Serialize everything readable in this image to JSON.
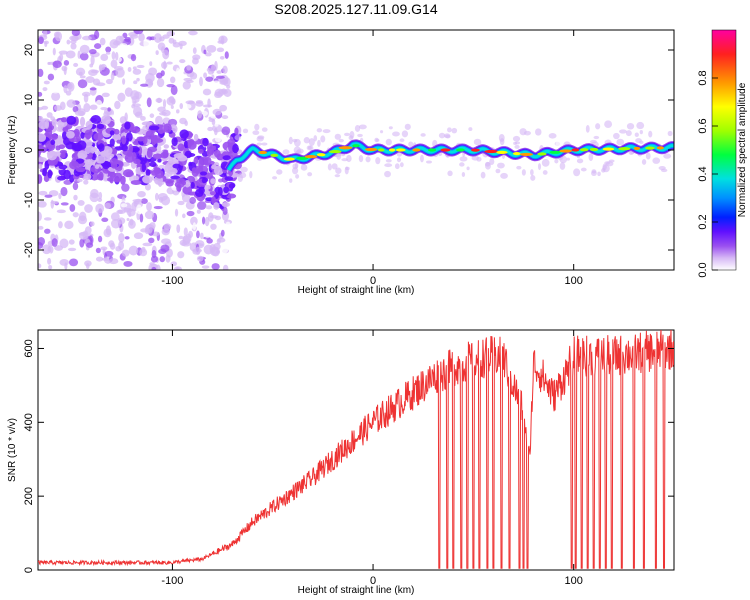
{
  "title": "S208.2025.127.11.09.G14",
  "chart_data": [
    {
      "type": "heatmap",
      "xlabel": "Height of straight line (km)",
      "ylabel": "Frequency (Hz)",
      "xlim": [
        -167,
        150
      ],
      "ylim": [
        -24,
        24
      ],
      "xticks": [
        -100,
        0,
        100
      ],
      "yticks": [
        -20,
        -10,
        0,
        10,
        20
      ],
      "colorbar": {
        "label": "Normalized spectral amplitude",
        "range": [
          0,
          1
        ],
        "ticks": [
          "0.0",
          "0.2",
          "0.4",
          "0.6",
          "0.8"
        ],
        "colors": [
          "#ffffff",
          "#d6b8f5",
          "#9a50f0",
          "#6010ff",
          "#0020ff",
          "#0090ff",
          "#00e0e0",
          "#00ff40",
          "#a0ff00",
          "#ffff00",
          "#ff9900",
          "#ff2020",
          "#ff00a0"
        ]
      },
      "ridge": [
        {
          "x": -167,
          "f": 0
        },
        {
          "x": -140,
          "f": 0.5
        },
        {
          "x": -120,
          "f": -0.5
        },
        {
          "x": -100,
          "f": -1
        },
        {
          "x": -85,
          "f": -4
        },
        {
          "x": -75,
          "f": -6
        },
        {
          "x": -68,
          "f": -2
        },
        {
          "x": -60,
          "f": 0
        },
        {
          "x": -40,
          "f": -2
        },
        {
          "x": -20,
          "f": -0.5
        },
        {
          "x": -10,
          "f": 1
        },
        {
          "x": 0,
          "f": 0
        },
        {
          "x": 50,
          "f": 0
        },
        {
          "x": 80,
          "f": -1
        },
        {
          "x": 100,
          "f": 0
        },
        {
          "x": 150,
          "f": 0.5
        }
      ]
    },
    {
      "type": "line",
      "xlabel": "Height of straight line (km)",
      "ylabel": "SNR (10 * v/v)",
      "xlim": [
        -167,
        150
      ],
      "ylim": [
        0,
        650
      ],
      "xticks": [
        -100,
        0,
        100
      ],
      "yticks": [
        0,
        200,
        400,
        600
      ],
      "color": "#ee3333",
      "trend": [
        {
          "x": -167,
          "y": 20
        },
        {
          "x": -100,
          "y": 20
        },
        {
          "x": -85,
          "y": 30
        },
        {
          "x": -70,
          "y": 70
        },
        {
          "x": -60,
          "y": 130
        },
        {
          "x": -45,
          "y": 190
        },
        {
          "x": -30,
          "y": 250
        },
        {
          "x": -20,
          "y": 300
        },
        {
          "x": -10,
          "y": 350
        },
        {
          "x": 0,
          "y": 400
        },
        {
          "x": 10,
          "y": 440
        },
        {
          "x": 20,
          "y": 480
        },
        {
          "x": 30,
          "y": 520
        },
        {
          "x": 40,
          "y": 550
        },
        {
          "x": 50,
          "y": 570
        },
        {
          "x": 60,
          "y": 580
        },
        {
          "x": 65,
          "y": 575
        },
        {
          "x": 70,
          "y": 500
        },
        {
          "x": 75,
          "y": 430
        },
        {
          "x": 78,
          "y": 300
        },
        {
          "x": 80,
          "y": 560
        },
        {
          "x": 85,
          "y": 520
        },
        {
          "x": 90,
          "y": 470
        },
        {
          "x": 95,
          "y": 520
        },
        {
          "x": 100,
          "y": 580
        },
        {
          "x": 120,
          "y": 580
        },
        {
          "x": 150,
          "y": 600
        }
      ],
      "dropouts_x": [
        33,
        37,
        40,
        44,
        47,
        50,
        53,
        57,
        60,
        64,
        68,
        73,
        75,
        77,
        99,
        101,
        104,
        107,
        110,
        113,
        116,
        119,
        124,
        130,
        135,
        141,
        145
      ]
    }
  ]
}
